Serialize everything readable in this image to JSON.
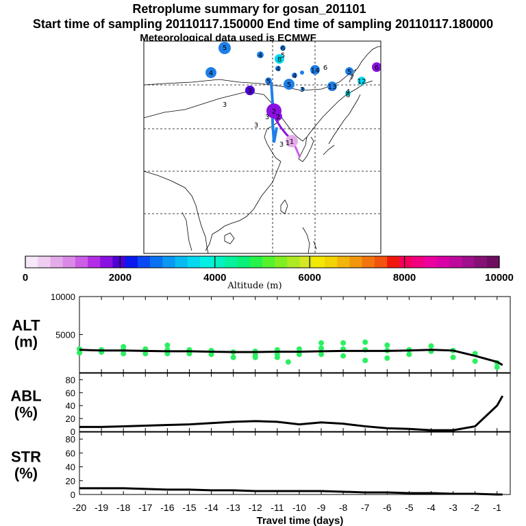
{
  "title": {
    "line1": "Retroplume summary for gosan_201101",
    "line2": "Start time of sampling 20110117.150000     End time of sampling 20110117.180000",
    "line3": "Meteorological data used is ECMWF"
  },
  "colorbar": {
    "label": "Altitude (m)",
    "ticks": [
      "0",
      "2000",
      "4000",
      "6000",
      "8000",
      "10000"
    ],
    "colors": [
      "#f7e8f7",
      "#efcdf0",
      "#e4abea",
      "#da8ae6",
      "#cc5ee6",
      "#b32fe6",
      "#8a10e0",
      "#4d00d2",
      "#0a19f0",
      "#0b49f2",
      "#0a72f2",
      "#0a98f2",
      "#06bbf2",
      "#06d9ef",
      "#04efe3",
      "#04f2c1",
      "#06f29c",
      "#09f078",
      "#25f24a",
      "#55f22e",
      "#82ee22",
      "#aeea22",
      "#d6e622",
      "#f2e804",
      "#f2d404",
      "#f2b50b",
      "#f2960e",
      "#f2740e",
      "#f2530e",
      "#f2170e",
      "#f2005b",
      "#f20082",
      "#ec00a0",
      "#d800a6",
      "#be0a9c",
      "#a00f8c",
      "#851174",
      "#6f0e60"
    ]
  },
  "map": {
    "labels": [
      {
        "text": "5",
        "color": "#1f7fe8"
      },
      {
        "text": "4",
        "color": "#1f7fe8"
      },
      {
        "text": "4",
        "color": "#1f7fe8"
      },
      {
        "text": "6",
        "color": "#1f7fe8"
      },
      {
        "text": "5",
        "color": "#1f7fe8"
      },
      {
        "text": "8",
        "color": "#06d9ef"
      },
      {
        "text": "4",
        "color": "#1f7fe8"
      },
      {
        "text": "5",
        "color": "#1f7fe8"
      },
      {
        "text": "4",
        "color": "#1f7fe8"
      },
      {
        "text": "3",
        "color": "#4d00d2"
      },
      {
        "text": "5",
        "color": "#1f7fe8"
      },
      {
        "text": "3",
        "color": "#1f7fe8"
      },
      {
        "text": "3",
        "color": "#1f7fe8"
      },
      {
        "text": "14",
        "color": "#1f7fe8"
      },
      {
        "text": "6",
        "color": "#1f7fe8"
      },
      {
        "text": "13",
        "color": "#1f7fe8"
      },
      {
        "text": "5",
        "color": "#1f7fe8"
      },
      {
        "text": "7",
        "color": "#1f7fe8"
      },
      {
        "text": "12",
        "color": "#06d9ef"
      },
      {
        "text": "6",
        "color": "#1f7fe8"
      },
      {
        "text": "4",
        "color": "#06d9ef"
      },
      {
        "text": "6",
        "color": "#8a10e0"
      },
      {
        "text": "3",
        "color": "#1f7fe8"
      },
      {
        "text": "2",
        "color": "#8a10e0"
      },
      {
        "text": "3",
        "color": "#1f7fe8"
      },
      {
        "text": "2",
        "color": "#8a10e0"
      },
      {
        "text": "3",
        "color": "#1f7fe8"
      },
      {
        "text": "1",
        "color": "#cc5ee6"
      },
      {
        "text": "1",
        "color": "#8a10e0"
      }
    ]
  },
  "chart_data": [
    {
      "type": "scatter",
      "panel": "ALT",
      "ylabel": "ALT\n(m)",
      "ylabel_lines": [
        "ALT",
        "(m)"
      ],
      "ylim": [
        0,
        10000
      ],
      "yticks": [
        "5000",
        "10000"
      ],
      "x_unit": "Travel time (days)",
      "line": {
        "x": [
          -20,
          -19,
          -18,
          -17,
          -16,
          -15,
          -14,
          -13,
          -12,
          -11,
          -10,
          -9,
          -8,
          -7,
          -6,
          -5,
          -4,
          -3,
          -2,
          -1,
          -0.75
        ],
        "y": [
          3000,
          2900,
          2900,
          2850,
          2800,
          2800,
          2750,
          2700,
          2700,
          2750,
          2750,
          2800,
          2850,
          2850,
          2850,
          2900,
          3000,
          2900,
          2200,
          1400,
          1000
        ]
      },
      "points": [
        {
          "x": -20,
          "y": 2600
        },
        {
          "x": -20,
          "y": 3100
        },
        {
          "x": -19,
          "y": 2700
        },
        {
          "x": -19,
          "y": 3000
        },
        {
          "x": -18,
          "y": 2500
        },
        {
          "x": -18,
          "y": 3000
        },
        {
          "x": -18,
          "y": 3400
        },
        {
          "x": -17,
          "y": 2500
        },
        {
          "x": -17,
          "y": 3100
        },
        {
          "x": -16,
          "y": 2500
        },
        {
          "x": -16,
          "y": 3000
        },
        {
          "x": -16,
          "y": 3600
        },
        {
          "x": -15,
          "y": 2500
        },
        {
          "x": -15,
          "y": 3000
        },
        {
          "x": -14,
          "y": 2400
        },
        {
          "x": -14,
          "y": 2900
        },
        {
          "x": -13,
          "y": 2000
        },
        {
          "x": -13,
          "y": 2700
        },
        {
          "x": -12,
          "y": 2300
        },
        {
          "x": -12,
          "y": 2800
        },
        {
          "x": -12,
          "y": 2000
        },
        {
          "x": -11,
          "y": 2400
        },
        {
          "x": -11,
          "y": 3000
        },
        {
          "x": -11,
          "y": 2000
        },
        {
          "x": -10.5,
          "y": 1400
        },
        {
          "x": -10,
          "y": 2400
        },
        {
          "x": -10,
          "y": 3100
        },
        {
          "x": -9,
          "y": 2400
        },
        {
          "x": -9,
          "y": 3200
        },
        {
          "x": -9,
          "y": 3900
        },
        {
          "x": -8,
          "y": 3100
        },
        {
          "x": -8,
          "y": 3900
        },
        {
          "x": -8,
          "y": 2200
        },
        {
          "x": -7,
          "y": 3000
        },
        {
          "x": -7,
          "y": 4000
        },
        {
          "x": -7,
          "y": 1600
        },
        {
          "x": -6,
          "y": 1900
        },
        {
          "x": -6,
          "y": 2900
        },
        {
          "x": -6,
          "y": 3600
        },
        {
          "x": -5,
          "y": 2400
        },
        {
          "x": -5,
          "y": 3000
        },
        {
          "x": -4,
          "y": 2800
        },
        {
          "x": -4,
          "y": 3500
        },
        {
          "x": -3,
          "y": 2000
        },
        {
          "x": -3,
          "y": 2900
        },
        {
          "x": -2,
          "y": 1500
        },
        {
          "x": -2,
          "y": 2500
        },
        {
          "x": -1,
          "y": 700
        },
        {
          "x": -1,
          "y": 1300
        }
      ]
    },
    {
      "type": "line",
      "panel": "ABL",
      "ylabel_lines": [
        "ABL",
        "(%)"
      ],
      "ylim": [
        0,
        90
      ],
      "yticks": [
        "0",
        "20",
        "40",
        "60",
        "80"
      ],
      "x": [
        -20,
        -19,
        -18,
        -17,
        -16,
        -15,
        -14,
        -13,
        -12,
        -11,
        -10,
        -9,
        -8,
        -7,
        -6,
        -5,
        -4,
        -3,
        -2,
        -1,
        -0.75
      ],
      "values": [
        7,
        7,
        8,
        9,
        10,
        11,
        13,
        15,
        16,
        15,
        11,
        14,
        12,
        8,
        5,
        4,
        2,
        2,
        8,
        40,
        55
      ]
    },
    {
      "type": "line",
      "panel": "STR",
      "ylabel_lines": [
        "STR",
        "(%)"
      ],
      "ylim": [
        0,
        90
      ],
      "yticks": [
        "0",
        "20",
        "40",
        "60",
        "80"
      ],
      "x": [
        -20,
        -19,
        -18,
        -17,
        -16,
        -15,
        -14,
        -13,
        -12,
        -11,
        -10,
        -9,
        -8,
        -7,
        -6,
        -5,
        -4,
        -3,
        -2,
        -1,
        -0.75
      ],
      "values": [
        9,
        9,
        9,
        8,
        7,
        7,
        6,
        6,
        5,
        5,
        5,
        5,
        4,
        3,
        3,
        2,
        2,
        1,
        1,
        0,
        0
      ],
      "xlabel": "Travel time (days)",
      "xticks": [
        "-20",
        "-19",
        "-18",
        "-17",
        "-16",
        "-15",
        "-14",
        "-13",
        "-12",
        "-11",
        "-10",
        "-9",
        "-8",
        "-7",
        "-6",
        "-5",
        "-4",
        "-3",
        "-2",
        "-1"
      ]
    }
  ]
}
